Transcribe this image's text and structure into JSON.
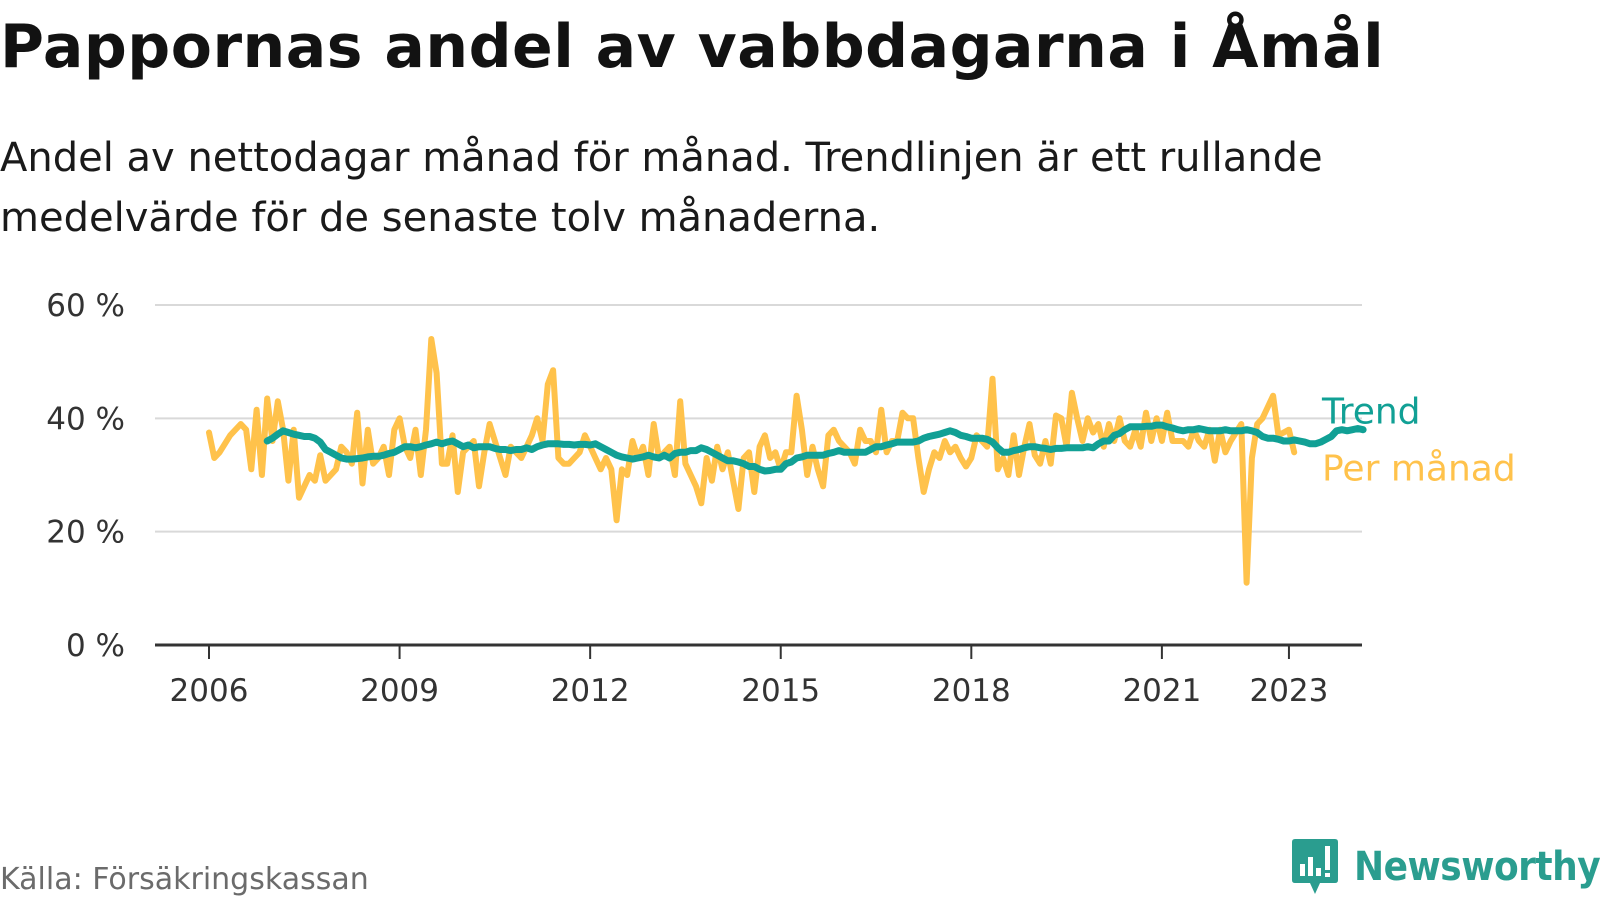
{
  "title": "Pappornas andel av vabbdagarna i Åmål",
  "subtitle": "Andel av nettodagar månad för månad. Trendlinjen är ett rullande medelvärde för de senaste tolv månaderna.",
  "source": "Källa: Försäkringskassan",
  "brand": {
    "name": "Newsworthy",
    "icon": "newsworthy-logo-icon"
  },
  "colors": {
    "monthly": "#FFC24B",
    "trend": "#11A095",
    "grid": "#d9d9d9",
    "axis": "#333333"
  },
  "chart_data": {
    "type": "line",
    "title": "Pappornas andel av vabbdagarna i Åmål",
    "ylim": [
      0,
      60
    ],
    "yticks": [
      0,
      20,
      40,
      60
    ],
    "ytick_labels": [
      "0 %",
      "20 %",
      "40 %",
      "60 %"
    ],
    "xlim": [
      2005.15,
      2024.15
    ],
    "xticks": [
      2006,
      2009,
      2012,
      2015,
      2018,
      2021,
      2023
    ],
    "xtick_labels": [
      "2006",
      "2009",
      "2012",
      "2015",
      "2018",
      "2021",
      "2023"
    ],
    "grid": true,
    "legend": "direct labels at right end of lines",
    "series": [
      {
        "name": "Per månad",
        "x_start": "2006-01",
        "frequency": "monthly",
        "values": [
          37.5,
          33,
          34,
          35.5,
          37,
          38,
          39,
          38,
          31,
          41.5,
          30,
          43.5,
          36,
          43,
          38,
          29,
          38,
          26,
          28,
          30,
          29,
          33.5,
          29,
          30,
          31,
          35,
          34,
          32,
          41,
          28.5,
          38,
          32,
          33,
          35,
          30,
          38,
          40,
          35,
          33,
          38,
          30,
          38,
          54,
          48,
          32,
          32,
          37,
          27,
          34,
          35,
          36,
          28,
          34,
          39,
          36,
          33,
          30,
          35,
          34,
          33,
          35,
          37,
          40,
          36,
          46,
          48.5,
          33,
          32,
          32,
          33,
          34,
          37,
          35,
          33,
          31,
          33,
          31,
          22,
          31,
          30,
          36,
          33,
          35,
          30,
          39,
          33,
          34,
          35,
          30,
          43,
          32,
          30,
          28,
          25,
          33,
          29,
          35,
          31,
          34,
          29,
          24,
          33,
          34,
          27,
          35,
          37,
          33,
          34,
          31,
          34,
          34,
          44,
          38,
          30,
          35,
          31,
          28,
          37,
          38,
          36,
          35,
          34,
          32,
          38,
          36,
          36,
          34,
          41.5,
          34,
          36,
          36,
          41,
          40,
          40,
          33,
          27,
          31,
          34,
          33,
          36,
          34,
          35,
          33,
          31.5,
          33,
          37,
          36,
          35,
          47,
          31,
          33,
          30,
          37,
          30,
          35,
          39,
          33.5,
          32,
          36,
          32,
          40.5,
          40,
          35,
          44.5,
          40,
          36,
          40,
          37.5,
          39,
          35,
          39,
          36,
          40,
          36,
          35,
          38,
          35,
          41,
          36,
          40,
          36,
          41,
          36,
          36,
          36,
          35,
          38,
          36,
          35,
          38,
          32.5,
          38,
          34,
          36,
          37.5,
          39,
          11,
          33,
          39,
          40,
          42,
          44,
          37,
          37.5,
          38,
          34
        ]
      },
      {
        "name": "Trend",
        "x_start": "2006-12",
        "frequency": "monthly",
        "values": [
          36,
          36.5,
          37.2,
          37.8,
          37.5,
          37.2,
          37,
          36.8,
          36.8,
          36.5,
          35.8,
          34.5,
          34,
          33.5,
          33,
          32.8,
          32.8,
          32.9,
          33,
          33.2,
          33.3,
          33.3,
          33.5,
          33.8,
          34,
          34.5,
          35,
          35,
          34.8,
          35,
          35.3,
          35.5,
          35.8,
          35.5,
          35.8,
          36,
          35.5,
          35,
          35.3,
          34.8,
          35,
          35,
          35,
          34.7,
          34.5,
          34.5,
          34.3,
          34.5,
          34.5,
          34.8,
          34.5,
          35,
          35.3,
          35.5,
          35.5,
          35.5,
          35.4,
          35.4,
          35.3,
          35.4,
          35.4,
          35.3,
          35.5,
          35,
          34.5,
          34,
          33.5,
          33.2,
          33,
          32.8,
          33,
          33.2,
          33.5,
          33.2,
          33,
          33.5,
          33,
          33.8,
          34,
          34,
          34.3,
          34.3,
          34.8,
          34.5,
          34,
          33.5,
          33,
          32.5,
          32.5,
          32.3,
          32,
          31.5,
          31.5,
          31,
          30.7,
          30.8,
          31,
          31,
          32,
          32.3,
          33,
          33.2,
          33.5,
          33.5,
          33.5,
          33.5,
          33.8,
          34,
          34.3,
          34,
          34,
          34,
          34,
          34,
          34.5,
          35,
          35,
          35.3,
          35.5,
          35.8,
          35.8,
          35.8,
          35.8,
          36,
          36.5,
          36.8,
          37,
          37.2,
          37.5,
          37.8,
          37.5,
          37,
          36.8,
          36.5,
          36.5,
          36.5,
          36.3,
          35.8,
          34.8,
          34,
          34,
          34.3,
          34.5,
          34.8,
          35,
          35,
          34.8,
          34.7,
          34.5,
          34.7,
          34.7,
          34.8,
          34.8,
          34.8,
          34.8,
          35,
          34.8,
          35.5,
          36,
          36,
          37,
          37.3,
          38,
          38.5,
          38.5,
          38.5,
          38.6,
          38.6,
          38.8,
          38.8,
          38.5,
          38.3,
          38,
          37.8,
          38,
          38,
          38.2,
          38,
          37.8,
          37.8,
          37.8,
          38,
          37.8,
          37.8,
          37.8,
          38,
          37.8,
          37.5,
          36.8,
          36.5,
          36.5,
          36.3,
          36,
          36,
          36.2,
          36,
          35.8,
          35.5,
          35.5,
          35.8,
          36.3,
          36.8,
          37.8,
          38,
          37.8,
          38,
          38.2,
          38
        ]
      }
    ]
  }
}
